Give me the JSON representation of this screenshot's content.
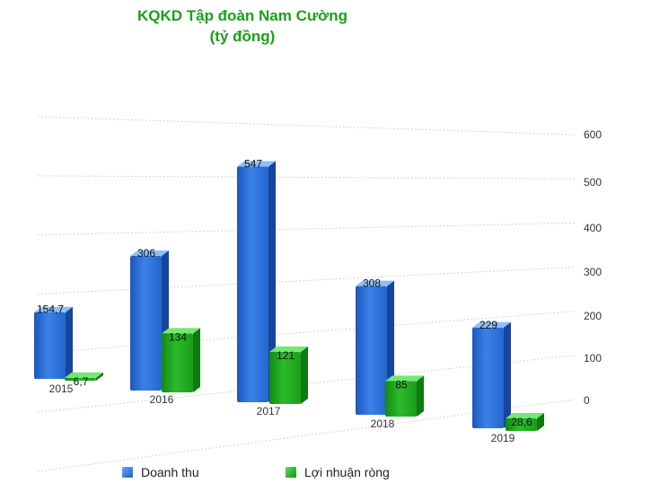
{
  "chart_data": {
    "type": "bar",
    "title": "KQKD Tập đoàn Nam Cường",
    "subtitle": "(tỷ đồng)",
    "categories": [
      "2015",
      "2016",
      "2017",
      "2018",
      "2019"
    ],
    "series": [
      {
        "name": "Doanh thu",
        "values": [
          154.7,
          306,
          547,
          308,
          229
        ],
        "labels": [
          "154,7",
          "306",
          "547",
          "308",
          "229"
        ],
        "color": "#2f73dc"
      },
      {
        "name": "Lợi nhuận ròng",
        "values": [
          6.7,
          134,
          121,
          85,
          28.6
        ],
        "labels": [
          "6,7",
          "134",
          "121",
          "85",
          "28,6"
        ],
        "color": "#22b022"
      }
    ],
    "y_ticks": [
      "0",
      "100",
      "200",
      "300",
      "400",
      "500",
      "600"
    ],
    "ylim": [
      0,
      600
    ],
    "grid": true,
    "legend_position": "bottom"
  }
}
